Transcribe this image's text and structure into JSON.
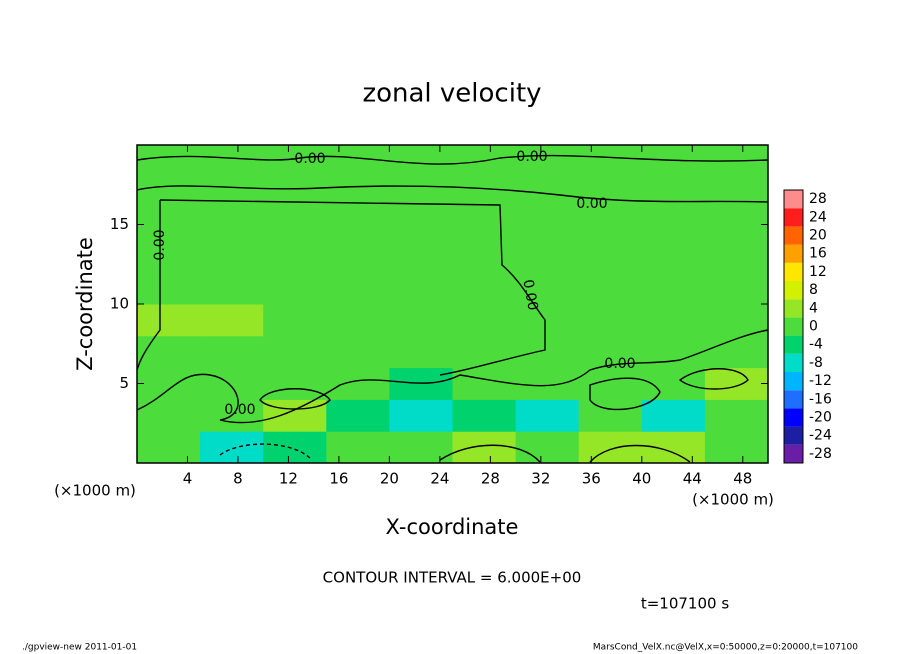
{
  "chart_data": {
    "type": "heatmap",
    "title": "zonal velocity",
    "xlabel": "X-coordinate",
    "ylabel": "Z-coordinate",
    "x_unit": "(×1000 m)",
    "xlim": [
      0,
      50
    ],
    "ylim": [
      0,
      20
    ],
    "xticks": [
      4,
      8,
      12,
      16,
      20,
      24,
      28,
      32,
      36,
      40,
      44,
      48
    ],
    "yticks": [
      5,
      10,
      15
    ],
    "x": [
      2.5,
      7.5,
      12.5,
      17.5,
      22.5,
      27.5,
      32.5,
      37.5,
      42.5,
      47.5
    ],
    "y": [
      1,
      3,
      5,
      7,
      9,
      11,
      13,
      15,
      17,
      19
    ],
    "z": [
      [
        2,
        -6,
        -4,
        2,
        2,
        6,
        2,
        6,
        4,
        2
      ],
      [
        2,
        2,
        6,
        -4,
        -6,
        -2,
        -6,
        2,
        -6,
        2
      ],
      [
        2,
        2,
        2,
        2,
        -2,
        2,
        2,
        2,
        2,
        4
      ],
      [
        2,
        2,
        2,
        2,
        2,
        2,
        2,
        2,
        2,
        2
      ],
      [
        4,
        4,
        2,
        2,
        2,
        2,
        2,
        2,
        2,
        2
      ],
      [
        2,
        2,
        2,
        2,
        2,
        2,
        2,
        2,
        2,
        2
      ],
      [
        2,
        2,
        2,
        2,
        2,
        2,
        2,
        2,
        2,
        2
      ],
      [
        2,
        2,
        2,
        2,
        2,
        2,
        2,
        2,
        2,
        2
      ],
      [
        2,
        2,
        2,
        2,
        2,
        2,
        2,
        2,
        2,
        2
      ],
      [
        2,
        2,
        2,
        2,
        2,
        2,
        2,
        2,
        2,
        2
      ]
    ],
    "colorbar": {
      "ticks": [
        -28,
        -24,
        -20,
        -16,
        -12,
        -8,
        -4,
        0,
        4,
        8,
        12,
        16,
        20,
        24,
        28
      ],
      "colors": [
        "#6a1ea8",
        "#1e1ea0",
        "#0000ff",
        "#1e6eff",
        "#00b4ff",
        "#00dcc8",
        "#00d26e",
        "#4cdc3c",
        "#96e628",
        "#d2f000",
        "#ffe600",
        "#ffa000",
        "#ff6400",
        "#ff1e1e",
        "#ff8c8c"
      ]
    },
    "contour_labels": [
      "0.00",
      "0.00",
      "0.00",
      "0.00",
      "0.00",
      "0.00",
      "0.00"
    ],
    "contour_interval": "CONTOUR INTERVAL = 6.000E+00",
    "time": "t=107100 s",
    "footer_left": "./gpview-new  2011-01-01",
    "footer_right": "MarsCond_VelX.nc@VelX,x=0:50000,z=0:20000,t=107100"
  }
}
